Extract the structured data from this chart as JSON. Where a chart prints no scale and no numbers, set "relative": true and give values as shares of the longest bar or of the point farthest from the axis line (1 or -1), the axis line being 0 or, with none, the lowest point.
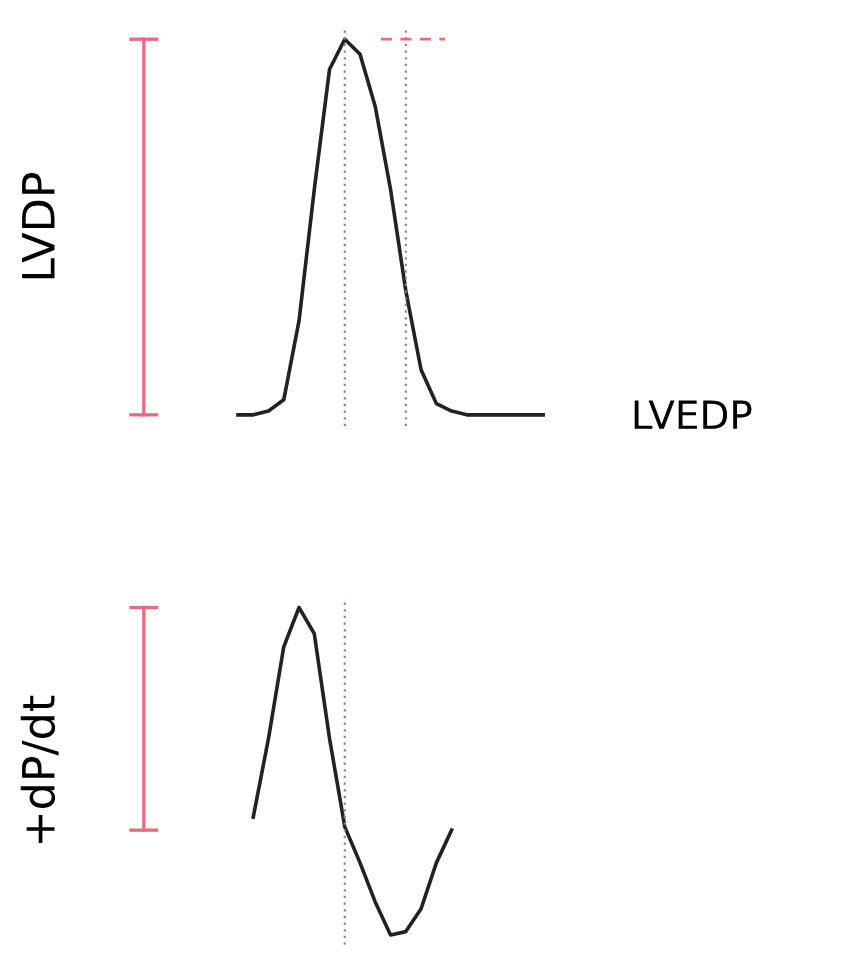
{
  "chart_data": [
    {
      "type": "line",
      "relative": true,
      "ylabel": "LVDP",
      "categories": [
        null,
        null,
        null,
        null,
        null,
        null,
        null,
        null,
        null,
        null,
        null,
        null,
        null,
        null,
        null,
        null,
        null,
        null,
        null,
        null,
        null
      ],
      "series": [
        {
          "color": "#222222",
          "values": [
            0,
            0,
            0.01,
            0.04,
            0.25,
            0.6,
            0.92,
            1.0,
            0.96,
            0.82,
            0.6,
            0.33,
            0.12,
            0.03,
            0.01,
            0,
            0,
            0,
            0,
            0,
            0
          ]
        }
      ],
      "ref_lines": [
        {
          "axis": "y",
          "value": 1,
          "color": "#e07080",
          "line_style": "dashed"
        }
      ],
      "annotations": [
        "LVEDP"
      ]
    },
    {
      "type": "line",
      "relative": true,
      "ylabel": "+dP/dt",
      "categories": [
        null,
        null,
        null,
        null,
        null,
        null,
        null,
        null,
        null,
        null,
        null,
        null,
        null,
        null,
        null,
        null,
        null,
        null,
        null,
        null,
        null
      ],
      "series": [
        {
          "color": "#222222",
          "values": [
            null,
            0.36,
            0.6,
            0.88,
            1.0,
            0.92,
            0.6,
            0.33,
            0.22,
            0.1,
            0,
            0.01,
            0.08,
            0.22,
            0.32,
            null,
            null,
            null,
            null,
            null,
            null
          ]
        }
      ]
    }
  ]
}
